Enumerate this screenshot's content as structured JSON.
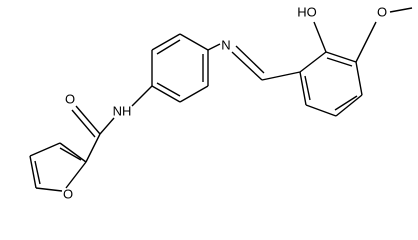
{
  "atoms": [
    "O",
    "NH",
    "N",
    "HO",
    "O",
    "O"
  ]
}
